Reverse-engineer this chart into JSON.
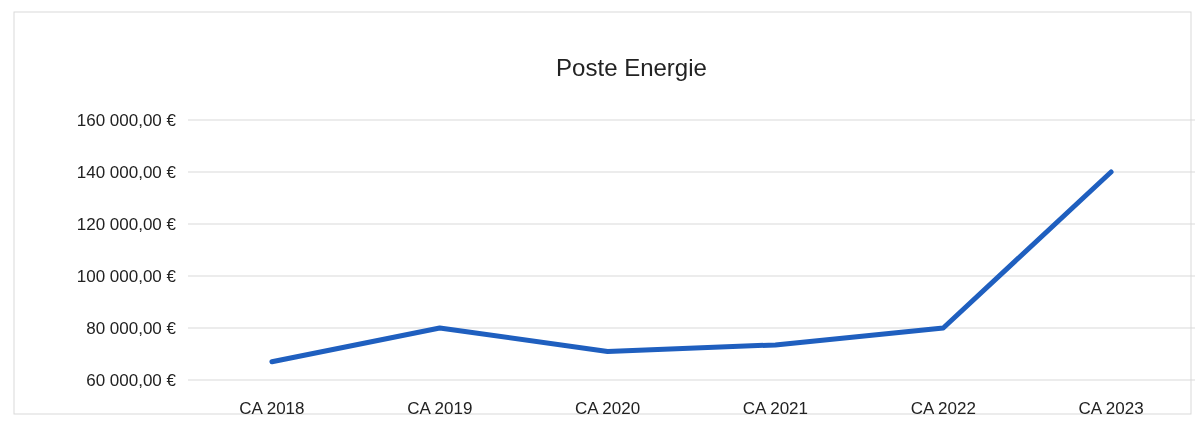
{
  "chart_data": {
    "type": "line",
    "title": "Poste Energie",
    "categories": [
      "CA 2018",
      "CA 2019",
      "CA 2020",
      "CA 2021",
      "CA 2022",
      "CA 2023"
    ],
    "series": [
      {
        "color": "#1f5fbf",
        "values": [
          67000,
          80000,
          71000,
          73500,
          80000,
          140000
        ]
      }
    ],
    "ylim": [
      60000,
      160000
    ],
    "yticks": [
      {
        "value": 60000,
        "label": "60 000,00 €"
      },
      {
        "value": 80000,
        "label": "80 000,00 €"
      },
      {
        "value": 100000,
        "label": "100 000,00 €"
      },
      {
        "value": 120000,
        "label": "120 000,00 €"
      },
      {
        "value": 140000,
        "label": "140 000,00 €"
      },
      {
        "value": 160000,
        "label": "160 000,00 €"
      }
    ],
    "grid": "y",
    "marker": "none",
    "line_style": "solid"
  }
}
